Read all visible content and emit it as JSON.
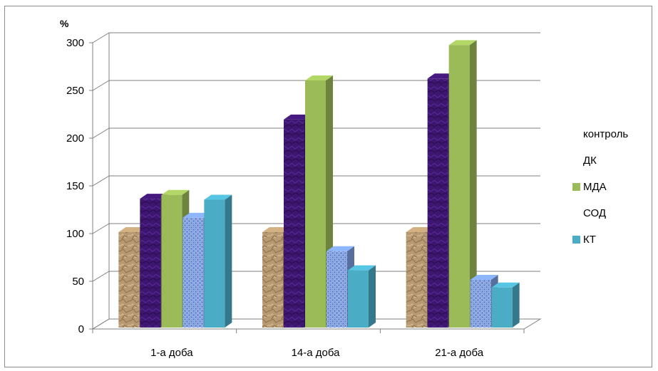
{
  "chart_data": {
    "type": "bar",
    "unit_label": "%",
    "categories": [
      "1-а доба",
      "14-а доба",
      "21-а доба"
    ],
    "series": [
      {
        "name": "контроль",
        "values": [
          100,
          100,
          100
        ],
        "color": "#b89a72",
        "pattern": "crumpled-paper",
        "legend_swatch": false
      },
      {
        "name": "ДК",
        "values": [
          135,
          218,
          261
        ],
        "color": "#3d1670",
        "pattern": "purple-texture",
        "legend_swatch": false
      },
      {
        "name": "МДА",
        "values": [
          139,
          259,
          296
        ],
        "color": "#9bbb59",
        "pattern": "solid",
        "legend_swatch": true
      },
      {
        "name": "СОД",
        "values": [
          115,
          80,
          50
        ],
        "color": "#7b9ee0",
        "pattern": "blue-weave",
        "legend_swatch": false
      },
      {
        "name": "КТ",
        "values": [
          134,
          60,
          42
        ],
        "color": "#4bacc6",
        "pattern": "solid",
        "legend_swatch": true
      }
    ],
    "yticks": [
      0,
      50,
      100,
      150,
      200,
      250,
      300
    ],
    "ylim": [
      0,
      300
    ],
    "grid": true,
    "legend_position": "right",
    "style": "3d-column"
  }
}
